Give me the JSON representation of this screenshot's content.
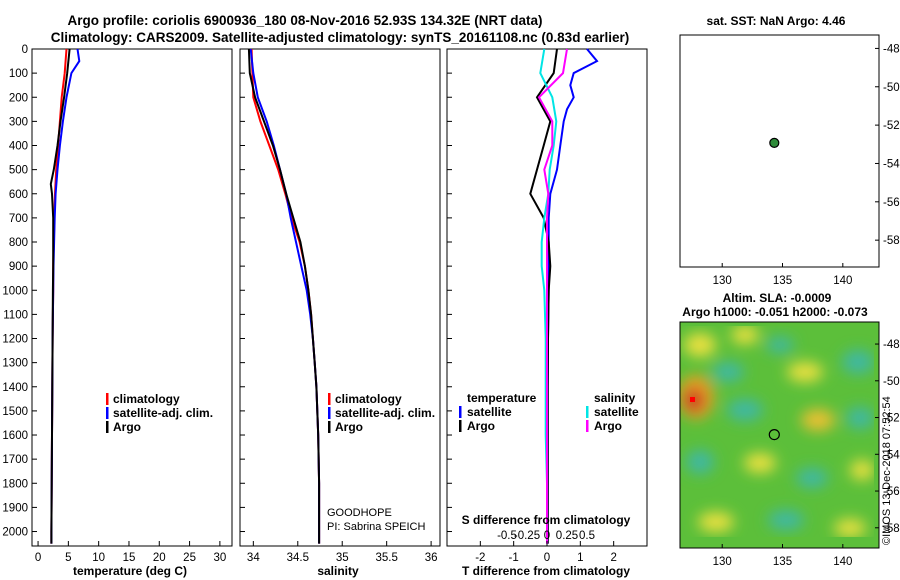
{
  "title_line1": "Argo profile: coriolis 6900936_180 08-Nov-2016 52.93S 134.32E (NRT data)",
  "title_line2": "Climatology: CARS2009. Satellite-adjusted climatology: synTS_20161108.nc (0.83d earlier)",
  "credit": "©IMOS 13-Dec-2018 07:52:54",
  "colors": {
    "climatology": "#ff0000",
    "satellite": "#0000ff",
    "argo": "#000000",
    "sat_s": "#00e5e5",
    "sat_t": "#ff00ff",
    "marker": "#2e8b3a"
  },
  "chart_data": {
    "depth_axis": {
      "ticks": [
        0,
        100,
        200,
        300,
        400,
        500,
        600,
        700,
        800,
        900,
        1000,
        1100,
        1200,
        1300,
        1400,
        1500,
        1600,
        1700,
        1800,
        1900,
        2000
      ],
      "labels": [
        "0",
        "100",
        "200",
        "300",
        "400",
        "500",
        "600",
        "700",
        "800",
        "900",
        "1000",
        "1100",
        "1200",
        "1300",
        "1400",
        "1500",
        "1600",
        "1700",
        "1800",
        "1900",
        "2000"
      ],
      "ylim": [
        0,
        2060
      ]
    },
    "temperature": {
      "type": "line",
      "xlabel": "temperature (deg C)",
      "xlim": [
        -1,
        32
      ],
      "ticks": [
        0,
        5,
        10,
        15,
        20,
        25,
        30
      ],
      "tick_labels": [
        "0",
        "5",
        "10",
        "15",
        "20",
        "25",
        "30"
      ],
      "legend": [
        "climatology",
        "satellite-adj. clim.",
        "Argo"
      ],
      "series": [
        {
          "name": "climatology",
          "depth": [
            0,
            100,
            200,
            300,
            400,
            500,
            600,
            700,
            800,
            900,
            1000,
            1200,
            1400,
            1600,
            1800,
            2000,
            2050
          ],
          "values": [
            4.7,
            4.4,
            3.9,
            3.6,
            3.3,
            3.0,
            2.8,
            2.7,
            2.6,
            2.5,
            2.5,
            2.4,
            2.35,
            2.3,
            2.25,
            2.2,
            2.2
          ]
        },
        {
          "name": "satellite-adj. clim.",
          "depth": [
            0,
            50,
            100,
            200,
            300,
            400,
            500,
            600,
            700,
            800,
            900,
            1000,
            1200,
            1400,
            1600,
            1800,
            2000,
            2050
          ],
          "values": [
            6.5,
            6.8,
            5.5,
            4.7,
            4.1,
            3.6,
            3.2,
            2.9,
            2.75,
            2.65,
            2.55,
            2.5,
            2.4,
            2.35,
            2.3,
            2.25,
            2.2,
            2.2
          ]
        },
        {
          "name": "Argo",
          "depth": [
            0,
            100,
            200,
            300,
            400,
            500,
            560,
            600,
            700,
            800,
            900,
            1000,
            1200,
            1400,
            1600,
            1800,
            2000,
            2050
          ],
          "values": [
            5.2,
            4.8,
            4.3,
            3.7,
            3.2,
            2.6,
            2.1,
            2.3,
            2.5,
            2.5,
            2.5,
            2.45,
            2.4,
            2.35,
            2.3,
            2.25,
            2.2,
            2.2
          ]
        }
      ]
    },
    "salinity": {
      "type": "line",
      "xlabel": "salinity",
      "xlim": [
        33.85,
        36.1
      ],
      "ticks": [
        34,
        34.5,
        35,
        35.5,
        36
      ],
      "tick_labels": [
        "34",
        "34.5",
        "35",
        "35.5",
        "36"
      ],
      "legend": [
        "climatology",
        "satellite-adj. clim.",
        "Argo"
      ],
      "annotation": [
        "GOODHOPE",
        "PI: Sabrina SPEICH"
      ],
      "series": [
        {
          "name": "climatology",
          "depth": [
            0,
            100,
            200,
            300,
            400,
            500,
            600,
            700,
            800,
            900,
            1000,
            1100,
            1200,
            1300,
            1400,
            1500,
            1600,
            1800,
            2000,
            2050
          ],
          "values": [
            33.98,
            33.99,
            34.0,
            34.08,
            34.18,
            34.28,
            34.36,
            34.43,
            34.52,
            34.58,
            34.62,
            34.65,
            34.67,
            34.69,
            34.71,
            34.72,
            34.73,
            34.74,
            34.74,
            34.74
          ]
        },
        {
          "name": "satellite-adj. clim.",
          "depth": [
            0,
            100,
            200,
            300,
            400,
            500,
            600,
            700,
            800,
            900,
            1000,
            1100,
            1200,
            1300,
            1400,
            1500,
            1600,
            1800,
            2000,
            2050
          ],
          "values": [
            33.97,
            34.0,
            34.05,
            34.15,
            34.23,
            34.3,
            34.37,
            34.42,
            34.48,
            34.54,
            34.6,
            34.64,
            34.67,
            34.69,
            34.71,
            34.72,
            34.73,
            34.74,
            34.74,
            34.74
          ]
        },
        {
          "name": "Argo",
          "depth": [
            0,
            100,
            200,
            300,
            400,
            500,
            600,
            700,
            800,
            900,
            1000,
            1100,
            1200,
            1300,
            1400,
            1500,
            1600,
            1800,
            2000,
            2050
          ],
          "values": [
            33.95,
            33.96,
            34.02,
            34.12,
            34.22,
            34.3,
            34.37,
            34.45,
            34.53,
            34.58,
            34.62,
            34.65,
            34.67,
            34.69,
            34.71,
            34.72,
            34.73,
            34.74,
            34.74,
            34.74
          ]
        }
      ]
    },
    "difference": {
      "type": "line",
      "xlabel": "T difference from climatology",
      "xlabel_top": "S difference from climatology",
      "xlim": [
        -3,
        3
      ],
      "ticks": [
        -2,
        -1,
        0,
        1,
        2
      ],
      "tick_labels": [
        "-2",
        "-1",
        "0",
        "1",
        "2"
      ],
      "s_ticks": [
        -0.5,
        -0.25,
        0,
        0.25,
        0.5
      ],
      "s_tick_labels": [
        "-0.5",
        "-0.25",
        "0",
        "0.25",
        "0.5"
      ],
      "legend_t_title": "temperature",
      "legend_s_title": "salinity",
      "legend_t": [
        "satellite",
        "Argo"
      ],
      "legend_s": [
        "satellite",
        "Argo"
      ],
      "series": [
        {
          "name": "T satellite",
          "depth": [
            0,
            50,
            100,
            150,
            200,
            250,
            300,
            400,
            500,
            600,
            700,
            800,
            900,
            1000,
            1200,
            1400,
            1600,
            1800,
            2000,
            2050
          ],
          "values": [
            1.2,
            1.5,
            0.8,
            0.7,
            0.8,
            0.6,
            0.5,
            0.4,
            0.3,
            0.1,
            0.05,
            0.05,
            0.05,
            0.05,
            0.03,
            0.02,
            0.02,
            0.02,
            0.02,
            0.02
          ]
        },
        {
          "name": "T Argo",
          "depth": [
            0,
            100,
            200,
            300,
            400,
            500,
            600,
            700,
            800,
            900,
            1000,
            1200,
            1400,
            1600,
            1800,
            2000,
            2050
          ],
          "values": [
            0.3,
            0.2,
            -0.3,
            0.1,
            -0.1,
            -0.3,
            -0.5,
            -0.1,
            0.05,
            0.1,
            0.05,
            0.03,
            0.02,
            0.02,
            0.02,
            0.02,
            0.02
          ]
        },
        {
          "name": "S satellite",
          "depth": [
            0,
            100,
            200,
            300,
            400,
            500,
            600,
            700,
            800,
            900,
            1000,
            1200,
            1400,
            1600,
            1800,
            2000,
            2050
          ],
          "values": [
            -0.02,
            -0.05,
            0.04,
            0.07,
            0.05,
            0.02,
            0.01,
            -0.02,
            -0.04,
            -0.04,
            -0.02,
            -0.01,
            -0.01,
            -0.01,
            0.0,
            0.0,
            0.0
          ]
        },
        {
          "name": "S Argo",
          "depth": [
            0,
            100,
            200,
            300,
            400,
            500,
            600,
            700,
            800,
            900,
            1000,
            1200,
            1400,
            1600,
            1800,
            2000,
            2050
          ],
          "values": [
            0.15,
            0.12,
            -0.06,
            0.04,
            0.04,
            -0.02,
            0.01,
            0.0,
            0.0,
            0.0,
            0.0,
            0.0,
            0.0,
            0.0,
            0.0,
            0.0,
            0.0
          ]
        }
      ]
    },
    "map_sst": {
      "title": "sat. SST: NaN Argo: 4.46",
      "xlim": [
        126.5,
        143
      ],
      "ylim": [
        -59.4,
        -47.3
      ],
      "xticks": [
        130,
        135,
        140
      ],
      "yticks": [
        -48,
        -50,
        -52,
        -54,
        -56,
        -58
      ],
      "xtick_labels": [
        "130",
        "135",
        "140"
      ],
      "ytick_labels": [
        "-48",
        "-50",
        "-52",
        "-54",
        "-56",
        "-58"
      ],
      "argo_point": {
        "lon": 134.32,
        "lat": -52.93
      }
    },
    "map_sla": {
      "title_line1": "Altim. SLA: -0.0009",
      "title_line2": "Argo h1000: -0.051 h2000: -0.073",
      "xlim": [
        126.5,
        143
      ],
      "ylim": [
        -59.1,
        -46.8
      ],
      "xticks": [
        130,
        135,
        140
      ],
      "yticks": [
        -48,
        -50,
        -52,
        -54,
        -56,
        -58
      ],
      "xtick_labels": [
        "130",
        "135",
        "140"
      ],
      "ytick_labels": [
        "-48",
        "-50",
        "-52",
        "-54",
        "-56",
        "-58"
      ],
      "argo_point": {
        "lon": 134.32,
        "lat": -52.93
      }
    }
  }
}
